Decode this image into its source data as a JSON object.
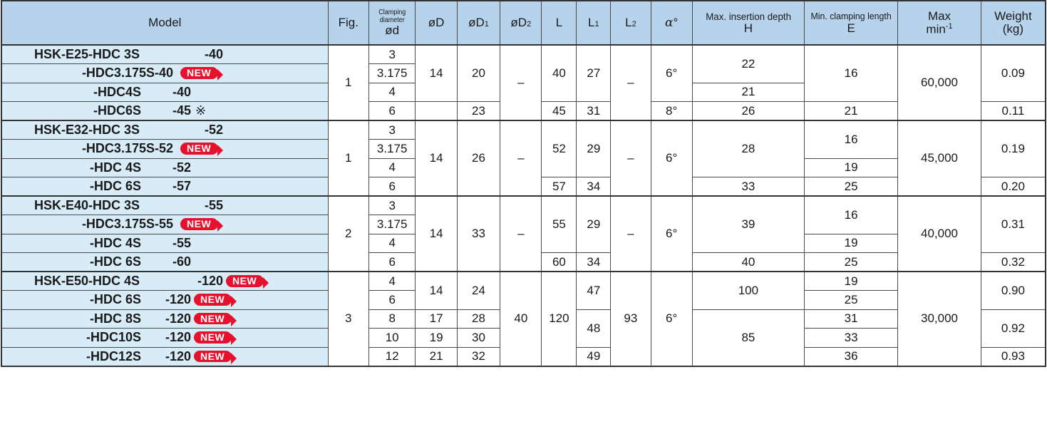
{
  "headers": {
    "model": "Model",
    "fig": "Fig.",
    "clamp_small": "Clamping diameter",
    "clamp_main": "ød",
    "od": "øD",
    "od1": "øD",
    "od1_sub": "1",
    "od2": "øD",
    "od2_sub": "2",
    "l": "L",
    "l1": "L",
    "l1_sub": "1",
    "l2": "L",
    "l2_sub": "2",
    "alpha": "α",
    "alpha_unit": "°",
    "h_small": "Max. insertion depth",
    "h_main": "H",
    "e_small": "Min. clamping length",
    "e_main": "E",
    "max_top": "Max",
    "max_bot": "min",
    "max_sup": "-1",
    "weight_top": "Weight",
    "weight_bot": "(kg)"
  },
  "badge": "NEW",
  "groups": [
    {
      "fig": "1",
      "rows": [
        {
          "model": "HSK-E25-HDC 3S",
          "code": "-40",
          "d": "3"
        },
        {
          "model": "-HDC3.175S-40",
          "code": "",
          "badge": true,
          "d": "3.175"
        },
        {
          "model": "-HDC4S",
          "code": "-40",
          "d": "4"
        },
        {
          "model": "-HDC6S",
          "code": "-45",
          "note": "※",
          "d": "6"
        }
      ],
      "od_a": "14",
      "od1_a": "20",
      "od1_b": "23",
      "od2": "–",
      "l_a": "40",
      "l_b": "45",
      "l1_a": "27",
      "l1_b": "31",
      "l2": "–",
      "alpha_a": "6°",
      "alpha_b": "8°",
      "h_a": "22",
      "h_b": "21",
      "h_c": "26",
      "e_a": "16",
      "e_b": "21",
      "max": "60,000",
      "w_a": "0.09",
      "w_b": "0.11"
    },
    {
      "fig": "1",
      "rows": [
        {
          "model": "HSK-E32-HDC 3S",
          "code": "-52",
          "d": "3"
        },
        {
          "model": "-HDC3.175S-52",
          "code": "",
          "badge": true,
          "d": "3.175"
        },
        {
          "model": "-HDC 4S",
          "code": "-52",
          "d": "4"
        },
        {
          "model": "-HDC 6S",
          "code": "-57",
          "d": "6"
        }
      ],
      "od": "14",
      "od1": "26",
      "od2": "–",
      "l_a": "52",
      "l_b": "57",
      "l1_a": "29",
      "l1_b": "34",
      "l2": "–",
      "alpha": "6°",
      "h_a": "28",
      "h_b": "33",
      "e_a": "16",
      "e_b": "19",
      "e_c": "25",
      "max": "45,000",
      "w_a": "0.19",
      "w_b": "0.20"
    },
    {
      "fig": "2",
      "rows": [
        {
          "model": "HSK-E40-HDC 3S",
          "code": "-55",
          "d": "3"
        },
        {
          "model": "-HDC3.175S-55",
          "code": "",
          "badge": true,
          "d": "3.175"
        },
        {
          "model": "-HDC 4S",
          "code": "-55",
          "d": "4"
        },
        {
          "model": "-HDC 6S",
          "code": "-60",
          "d": "6"
        }
      ],
      "od": "14",
      "od1": "33",
      "od2": "–",
      "l_a": "55",
      "l_b": "60",
      "l1_a": "29",
      "l1_b": "34",
      "l2": "–",
      "alpha": "6°",
      "h_a": "39",
      "h_b": "40",
      "e_a": "16",
      "e_b": "19",
      "e_c": "25",
      "max": "40,000",
      "w_a": "0.31",
      "w_b": "0.32"
    },
    {
      "fig": "3",
      "rows": [
        {
          "model": "HSK-E50-HDC 4S",
          "code": "-120",
          "badge": true,
          "d": "4"
        },
        {
          "model": "-HDC 6S",
          "code": "-120",
          "badge": true,
          "d": "6"
        },
        {
          "model": "-HDC 8S",
          "code": "-120",
          "badge": true,
          "d": "8"
        },
        {
          "model": "-HDC10S",
          "code": "-120",
          "badge": true,
          "d": "10"
        },
        {
          "model": "-HDC12S",
          "code": "-120",
          "badge": true,
          "d": "12"
        }
      ],
      "od_a": "14",
      "od_b": "17",
      "od_c": "19",
      "od_d": "21",
      "od1_a": "24",
      "od1_b": "28",
      "od1_c": "30",
      "od1_d": "32",
      "od2": "40",
      "l": "120",
      "l1_a": "47",
      "l1_b": "48",
      "l1_c": "49",
      "l2": "93",
      "alpha": "6°",
      "h_a": "100",
      "h_b": "85",
      "e_a": "19",
      "e_b": "25",
      "e_c": "31",
      "e_d": "33",
      "e_e": "36",
      "max": "30,000",
      "w_a": "0.90",
      "w_b": "0.92",
      "w_c": "0.93"
    }
  ]
}
